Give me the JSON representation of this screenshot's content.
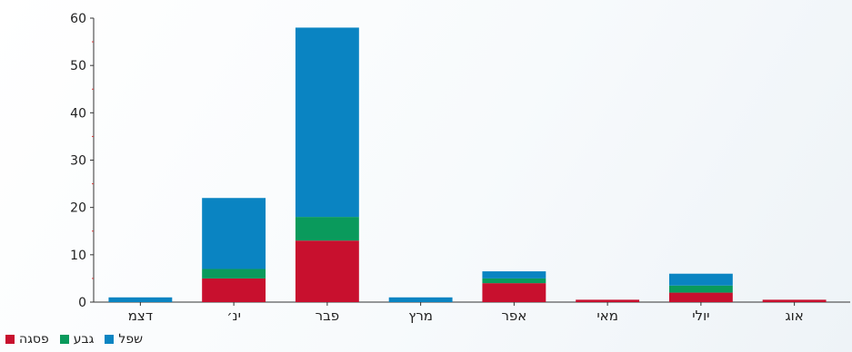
{
  "chart_data": {
    "type": "bar",
    "stacked": true,
    "categories": [
      "דצמ",
      "ינ׳",
      "פבר",
      "מרץ",
      "אפר",
      "מאי",
      "יולי",
      "אוג"
    ],
    "series": [
      {
        "name": "פסגה",
        "color": "#c8102e",
        "values": [
          0,
          5,
          13,
          0,
          4,
          0.5,
          2,
          0.5
        ]
      },
      {
        "name": "גבע",
        "color": "#0a9a5c",
        "values": [
          0,
          2,
          5,
          0,
          1,
          0,
          1.5,
          0
        ]
      },
      {
        "name": "שפל",
        "color": "#0a84c2",
        "values": [
          1,
          15,
          40,
          1,
          1.5,
          0,
          2.5,
          0
        ]
      }
    ],
    "ylim": [
      0,
      60
    ],
    "yticks": [
      0,
      10,
      20,
      30,
      40,
      50,
      60
    ],
    "grid": false,
    "legend_position": "bottom-left"
  }
}
